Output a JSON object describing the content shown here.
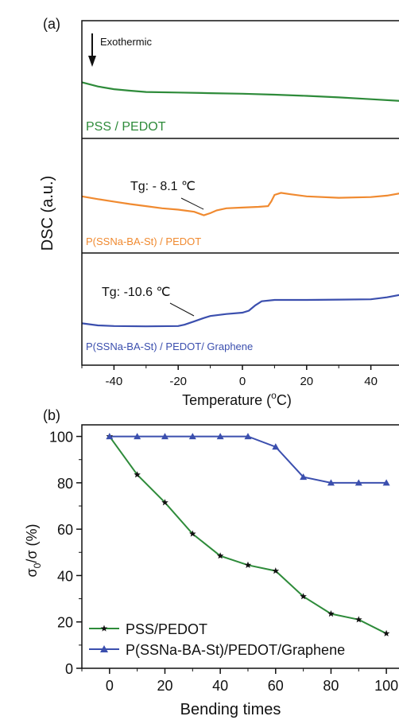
{
  "chart_data": [
    {
      "panel_label": "(a)",
      "type": "line",
      "xlabel": "Temperature (°C)",
      "xlabel_parts": [
        "Temperature (",
        "o",
        "C)"
      ],
      "ylabel": "DSC (a.u.)",
      "xlim": [
        -50,
        50
      ],
      "xticks": [
        -40,
        -20,
        0,
        20,
        40
      ],
      "annotation": "Exothermic",
      "series": [
        {
          "name": "PSS / PEDOT",
          "color": "#2e8b3a",
          "x": [
            -50,
            -45,
            -40,
            -35,
            -30,
            -20,
            -10,
            0,
            10,
            20,
            30,
            40,
            50
          ],
          "y": [
            0.7,
            0.56,
            0.47,
            0.42,
            0.38,
            0.36,
            0.34,
            0.32,
            0.29,
            0.25,
            0.2,
            0.14,
            0.08
          ]
        },
        {
          "name": "P(SSNa-BA-St) / PEDOT",
          "color": "#f08a30",
          "x": [
            -50,
            -45,
            -40,
            -35,
            -30,
            -25,
            -20,
            -15,
            -12,
            -10,
            -8,
            -5,
            0,
            5,
            8,
            9,
            10,
            12,
            15,
            20,
            30,
            40,
            45,
            50
          ],
          "y": [
            0.8,
            0.72,
            0.65,
            0.58,
            0.52,
            0.46,
            0.42,
            0.36,
            0.26,
            0.32,
            0.4,
            0.46,
            0.48,
            0.5,
            0.52,
            0.66,
            0.84,
            0.9,
            0.86,
            0.8,
            0.76,
            0.78,
            0.82,
            0.9
          ]
        },
        {
          "name": "P(SSNa-BA-St) / PEDOT/ Graphene",
          "color": "#3b4fae",
          "x": [
            -50,
            -45,
            -40,
            -30,
            -20,
            -18,
            -15,
            -12,
            -10,
            -5,
            0,
            2,
            4,
            6,
            10,
            20,
            30,
            40,
            45,
            50
          ],
          "y": [
            0.18,
            0.12,
            0.1,
            0.09,
            0.1,
            0.14,
            0.24,
            0.34,
            0.4,
            0.46,
            0.5,
            0.56,
            0.72,
            0.84,
            0.88,
            0.88,
            0.89,
            0.9,
            0.96,
            1.05
          ]
        }
      ],
      "tg_labels": [
        "Tg: - 8.1 ℃",
        "Tg: -10.6 ℃"
      ]
    },
    {
      "panel_label": "(b)",
      "type": "line",
      "xlabel": "Bending times",
      "ylabel": "σ₀/σ (%)",
      "ylabel_parts": [
        "σ",
        "0",
        "/σ (%)"
      ],
      "xlim": [
        -10,
        106
      ],
      "ylim": [
        0,
        105
      ],
      "xticks": [
        0,
        20,
        40,
        60,
        80,
        100
      ],
      "yticks": [
        0,
        20,
        40,
        60,
        80,
        100
      ],
      "legend_position": "bottom-left",
      "series": [
        {
          "name": "PSS/PEDOT",
          "color": "#2e8b3a",
          "marker": "star",
          "x": [
            0,
            10,
            20,
            30,
            40,
            50,
            60,
            70,
            80,
            90,
            100
          ],
          "y": [
            100,
            83.5,
            71.5,
            58,
            48.5,
            44.5,
            42,
            31,
            23.5,
            21,
            15
          ]
        },
        {
          "name": "P(SSNa-BA-St)/PEDOT/Graphene",
          "color": "#3b4fae",
          "marker": "triangle",
          "x": [
            0,
            10,
            20,
            30,
            40,
            50,
            60,
            70,
            80,
            90,
            100
          ],
          "y": [
            100,
            100,
            100,
            100,
            100,
            100,
            95.5,
            82.5,
            80,
            80,
            80
          ]
        }
      ]
    }
  ]
}
